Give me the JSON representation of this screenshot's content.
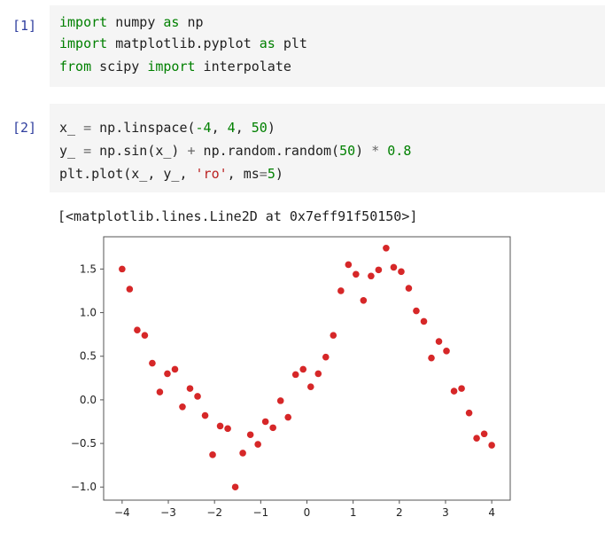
{
  "cells": [
    {
      "prompt": "[1]",
      "lines": [
        [
          {
            "t": "import",
            "c": "kw"
          },
          {
            "t": " numpy ",
            "c": "mod"
          },
          {
            "t": "as",
            "c": "kw"
          },
          {
            "t": " np",
            "c": "mod"
          }
        ],
        [
          {
            "t": "import",
            "c": "kw"
          },
          {
            "t": " matplotlib.pyplot ",
            "c": "mod"
          },
          {
            "t": "as",
            "c": "kw"
          },
          {
            "t": " plt",
            "c": "mod"
          }
        ],
        [
          {
            "t": "from",
            "c": "kw"
          },
          {
            "t": " scipy ",
            "c": "mod"
          },
          {
            "t": "import",
            "c": "kw"
          },
          {
            "t": " interpolate",
            "c": "mod"
          }
        ]
      ]
    },
    {
      "prompt": "[2]",
      "lines": [
        [
          {
            "t": "x_ ",
            "c": "mod"
          },
          {
            "t": "=",
            "c": "op"
          },
          {
            "t": " np.linspace(",
            "c": "mod"
          },
          {
            "t": "-4",
            "c": "num"
          },
          {
            "t": ", ",
            "c": "mod"
          },
          {
            "t": "4",
            "c": "num"
          },
          {
            "t": ", ",
            "c": "mod"
          },
          {
            "t": "50",
            "c": "num"
          },
          {
            "t": ")",
            "c": "mod"
          }
        ],
        [
          {
            "t": "y_ ",
            "c": "mod"
          },
          {
            "t": "=",
            "c": "op"
          },
          {
            "t": " np.sin(x_) ",
            "c": "mod"
          },
          {
            "t": "+",
            "c": "op"
          },
          {
            "t": " np.random.random(",
            "c": "mod"
          },
          {
            "t": "50",
            "c": "num"
          },
          {
            "t": ") ",
            "c": "mod"
          },
          {
            "t": "*",
            "c": "op"
          },
          {
            "t": " ",
            "c": "mod"
          },
          {
            "t": "0.8",
            "c": "num"
          }
        ],
        [
          {
            "t": "plt.plot(x_, y_, ",
            "c": "mod"
          },
          {
            "t": "'ro'",
            "c": "str"
          },
          {
            "t": ", ms",
            "c": "mod"
          },
          {
            "t": "=",
            "c": "op"
          },
          {
            "t": "5",
            "c": "num"
          },
          {
            "t": ")",
            "c": "mod"
          }
        ]
      ]
    }
  ],
  "output_text": "[<matplotlib.lines.Line2D at 0x7eff91f50150>]",
  "colors": {
    "marker": "#d62728",
    "axes": "#555555"
  },
  "chart_data": {
    "type": "scatter",
    "xlim": [
      -4.4,
      4.4
    ],
    "ylim": [
      -1.15,
      1.87
    ],
    "xticks": [
      -4,
      -3,
      -2,
      -1,
      0,
      1,
      2,
      3,
      4
    ],
    "xtick_labels": [
      "−4",
      "−3",
      "−2",
      "−1",
      "0",
      "1",
      "2",
      "3",
      "4"
    ],
    "yticks": [
      -1.0,
      -0.5,
      0.0,
      0.5,
      1.0,
      1.5
    ],
    "ytick_labels": [
      "−1.0",
      "−0.5",
      "0.0",
      "0.5",
      "1.0",
      "1.5"
    ],
    "x": [
      -4.0,
      -3.837,
      -3.673,
      -3.51,
      -3.347,
      -3.184,
      -3.02,
      -2.857,
      -2.694,
      -2.531,
      -2.367,
      -2.204,
      -2.041,
      -1.878,
      -1.714,
      -1.551,
      -1.388,
      -1.224,
      -1.061,
      -0.898,
      -0.735,
      -0.571,
      -0.408,
      -0.245,
      -0.082,
      0.082,
      0.245,
      0.408,
      0.571,
      0.735,
      0.898,
      1.061,
      1.224,
      1.388,
      1.551,
      1.714,
      1.878,
      2.041,
      2.204,
      2.367,
      2.531,
      2.694,
      2.857,
      3.02,
      3.184,
      3.347,
      3.51,
      3.673,
      3.837,
      4.0
    ],
    "y": [
      1.5,
      1.27,
      0.8,
      0.74,
      0.42,
      0.09,
      0.3,
      0.35,
      -0.08,
      0.13,
      0.04,
      -0.18,
      -0.63,
      -0.3,
      -0.33,
      -1.0,
      -0.61,
      -0.4,
      -0.51,
      -0.25,
      -0.32,
      -0.01,
      -0.2,
      0.29,
      0.35,
      0.15,
      0.3,
      0.49,
      0.74,
      1.25,
      1.55,
      1.44,
      1.14,
      1.42,
      1.49,
      1.74,
      1.52,
      1.47,
      1.28,
      1.02,
      0.9,
      0.48,
      0.67,
      0.56,
      0.1,
      0.13,
      -0.15,
      -0.44,
      -0.39,
      -0.52
    ],
    "grid": false
  }
}
